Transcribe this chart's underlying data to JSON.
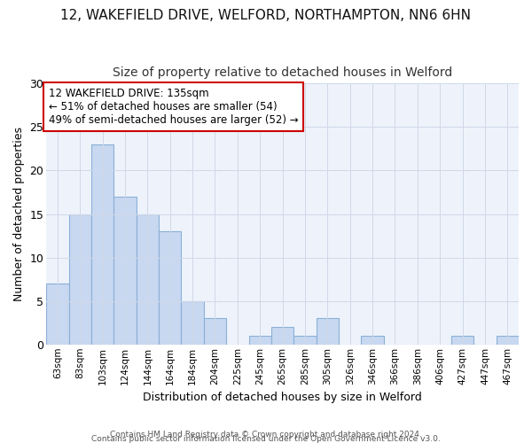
{
  "title1": "12, WAKEFIELD DRIVE, WELFORD, NORTHAMPTON, NN6 6HN",
  "title2": "Size of property relative to detached houses in Welford",
  "xlabel": "Distribution of detached houses by size in Welford",
  "ylabel": "Number of detached properties",
  "footer1": "Contains HM Land Registry data © Crown copyright and database right 2024.",
  "footer2": "Contains public sector information licensed under the Open Government Licence v3.0.",
  "annotation_line1": "12 WAKEFIELD DRIVE: 135sqm",
  "annotation_line2": "← 51% of detached houses are smaller (54)",
  "annotation_line3": "49% of semi-detached houses are larger (52) →",
  "bar_labels": [
    "63sqm",
    "83sqm",
    "103sqm",
    "124sqm",
    "144sqm",
    "164sqm",
    "184sqm",
    "204sqm",
    "225sqm",
    "245sqm",
    "265sqm",
    "285sqm",
    "305sqm",
    "326sqm",
    "346sqm",
    "366sqm",
    "386sqm",
    "406sqm",
    "427sqm",
    "447sqm",
    "467sqm"
  ],
  "bar_values": [
    7,
    15,
    23,
    17,
    15,
    13,
    5,
    3,
    0,
    1,
    2,
    1,
    3,
    0,
    1,
    0,
    0,
    0,
    1,
    0,
    1
  ],
  "bar_color": "#c8d8f0",
  "bar_edge_color": "#8ab0d8",
  "annotation_box_color": "#ffffff",
  "annotation_box_edge": "#cc0000",
  "grid_color": "#d0d8e8",
  "bg_color": "#ffffff",
  "plot_bg_color": "#eef3fb",
  "ylim": [
    0,
    30
  ],
  "yticks": [
    0,
    5,
    10,
    15,
    20,
    25,
    30
  ]
}
